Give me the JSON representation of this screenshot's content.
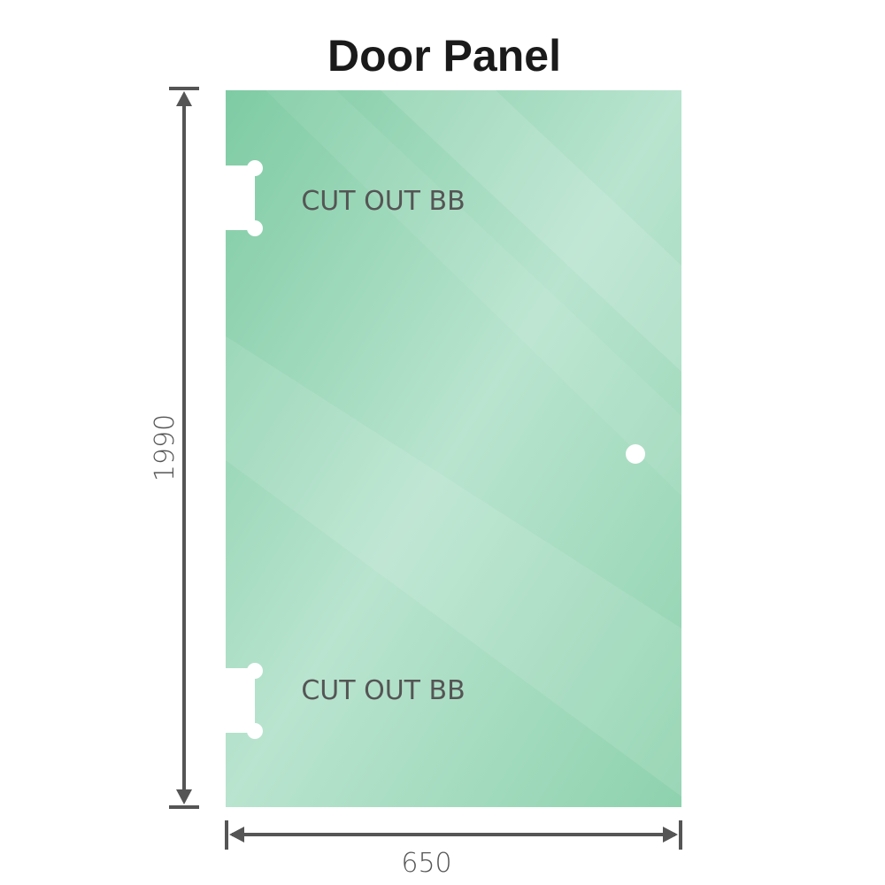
{
  "title": "Door Panel",
  "dimensions": {
    "height": "1990",
    "width": "650"
  },
  "cutouts": [
    {
      "label": "CUT OUT BB"
    },
    {
      "label": "CUT OUT BB"
    }
  ],
  "colors": {
    "glass": "#86cfa8",
    "glass_light": "#bde6d2",
    "dimension_line": "#555555"
  }
}
